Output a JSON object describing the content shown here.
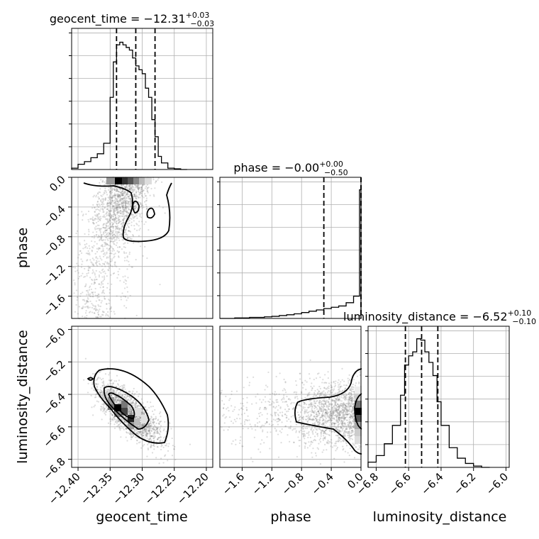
{
  "chart_data": {
    "type": "corner",
    "parameters": [
      "geocent_time",
      "phase",
      "luminosity_distance"
    ],
    "grid": true,
    "titles": [
      {
        "param": "geocent_time",
        "median": "−12.31",
        "plus": "+0.03",
        "minus": "−0.03"
      },
      {
        "param": "phase",
        "median": "−0.00",
        "plus": "+0.00",
        "minus": "−0.50"
      },
      {
        "param": "luminosity_distance",
        "median": "−6.52",
        "plus": "+0.10",
        "minus": "−0.10"
      }
    ],
    "ranges": {
      "geocent_time": [
        -12.41,
        -12.19
      ],
      "phase": [
        -1.9,
        0.0
      ],
      "luminosity_distance": [
        -6.85,
        -5.98
      ]
    },
    "ticks": {
      "geocent_time": [
        "−12.40",
        "−12.35",
        "−12.30",
        "−12.25",
        "−12.20"
      ],
      "geocent_time_values": [
        -12.4,
        -12.35,
        -12.3,
        -12.25,
        -12.2
      ],
      "phase": [
        "−1.6",
        "−1.2",
        "−0.8",
        "−0.4",
        "0.0"
      ],
      "phase_values": [
        -1.6,
        -1.2,
        -0.8,
        -0.4,
        0.0
      ],
      "luminosity_distance": [
        "−6.8",
        "−6.6",
        "−6.4",
        "−6.2",
        "−6.0"
      ],
      "luminosity_distance_values": [
        -6.8,
        -6.6,
        -6.4,
        -6.2,
        -6.0
      ]
    },
    "quantiles": {
      "geocent_time": [
        -12.34,
        -12.31,
        -12.28
      ],
      "phase": [
        -0.5,
        -0.0,
        0.0
      ],
      "luminosity_distance": [
        -6.62,
        -6.52,
        -6.42
      ]
    },
    "histograms": {
      "geocent_time": {
        "edges": [
          -12.41,
          -12.4,
          -12.39,
          -12.38,
          -12.37,
          -12.36,
          -12.35,
          -12.345,
          -12.34,
          -12.335,
          -12.33,
          -12.325,
          -12.32,
          -12.315,
          -12.31,
          -12.305,
          -12.3,
          -12.295,
          -12.29,
          -12.285,
          -12.28,
          -12.275,
          -12.27,
          -12.26,
          -12.25,
          -12.24,
          -12.23
        ],
        "counts": [
          0.01,
          0.04,
          0.06,
          0.09,
          0.12,
          0.2,
          0.55,
          0.82,
          0.95,
          0.97,
          0.95,
          0.93,
          0.91,
          0.85,
          0.79,
          0.76,
          0.73,
          0.62,
          0.55,
          0.38,
          0.25,
          0.1,
          0.05,
          0.01,
          0.005,
          0.0
        ]
      },
      "phase": {
        "edges": [
          -1.9,
          -1.7,
          -1.5,
          -1.3,
          -1.2,
          -1.1,
          -1.0,
          -0.9,
          -0.8,
          -0.7,
          -0.6,
          -0.5,
          -0.4,
          -0.3,
          -0.2,
          -0.1,
          -0.02,
          0.0
        ],
        "counts": [
          0.0,
          0.004,
          0.008,
          0.012,
          0.016,
          0.022,
          0.028,
          0.035,
          0.045,
          0.055,
          0.065,
          0.075,
          0.085,
          0.095,
          0.12,
          0.17,
          0.98
        ]
      },
      "luminosity_distance": {
        "edges": [
          -6.85,
          -6.8,
          -6.75,
          -6.7,
          -6.65,
          -6.625,
          -6.6,
          -6.575,
          -6.55,
          -6.525,
          -6.5,
          -6.475,
          -6.45,
          -6.425,
          -6.4,
          -6.35,
          -6.3,
          -6.25,
          -6.2,
          -6.15,
          -6.1
        ],
        "counts": [
          0.04,
          0.09,
          0.18,
          0.32,
          0.55,
          0.78,
          0.85,
          0.88,
          0.98,
          0.97,
          0.88,
          0.8,
          0.7,
          0.5,
          0.32,
          0.15,
          0.07,
          0.03,
          0.01,
          0.0
        ]
      }
    },
    "scatter": {
      "phase_vs_geocent_time": {
        "center": [
          -12.32,
          -0.3
        ],
        "spread": [
          0.025,
          0.45
        ],
        "color": "#808080"
      },
      "luminosity_distance_vs_geocent_time": {
        "center": [
          -12.32,
          -6.52
        ],
        "spread": [
          0.025,
          0.09
        ],
        "color": "#808080"
      },
      "luminosity_distance_vs_phase": {
        "center": [
          -0.5,
          -6.52
        ],
        "spread": [
          0.35,
          0.1
        ],
        "color": "#808080"
      }
    }
  }
}
